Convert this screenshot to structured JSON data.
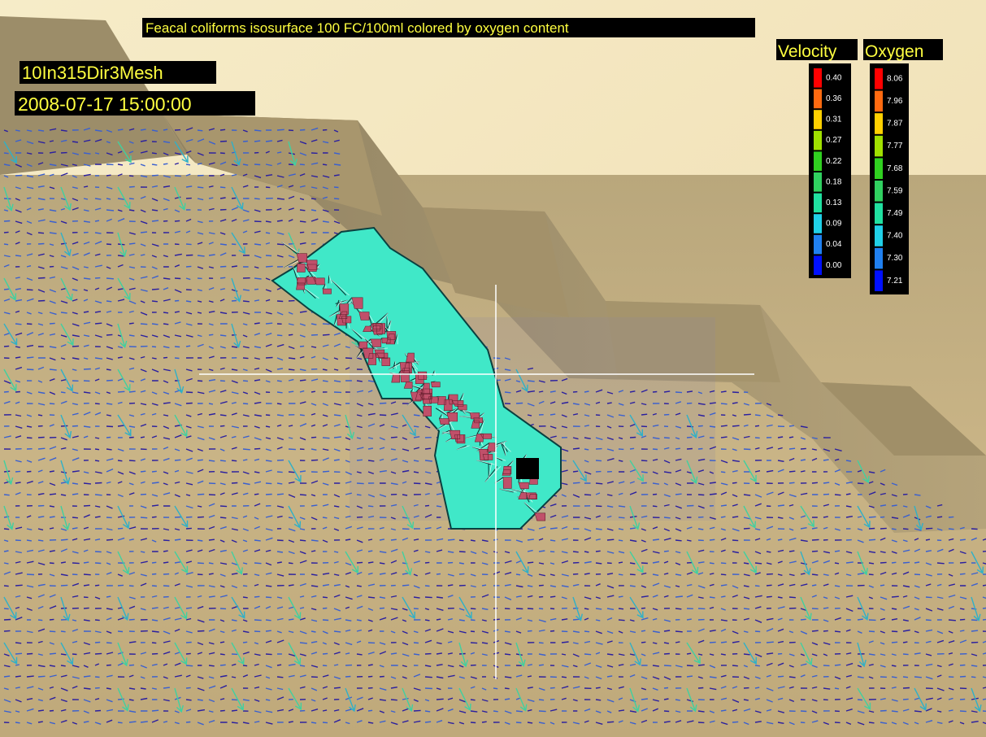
{
  "title": "Feacal coliforms isosurface 100 FC/100ml colored by oxygen content",
  "run_name": "10In315Dir3Mesh",
  "timestamp": "2008-07-17 15:00:00",
  "legends": [
    {
      "title": "Velocity",
      "labels": [
        "0.40",
        "0.36",
        "0.31",
        "0.27",
        "0.22",
        "0.18",
        "0.13",
        "0.09",
        "0.04",
        "0.00"
      ]
    },
    {
      "title": "Oxygen",
      "labels": [
        "8.06",
        "7.96",
        "7.87",
        "7.77",
        "7.68",
        "7.59",
        "7.49",
        "7.40",
        "7.30",
        "7.21"
      ]
    }
  ]
}
